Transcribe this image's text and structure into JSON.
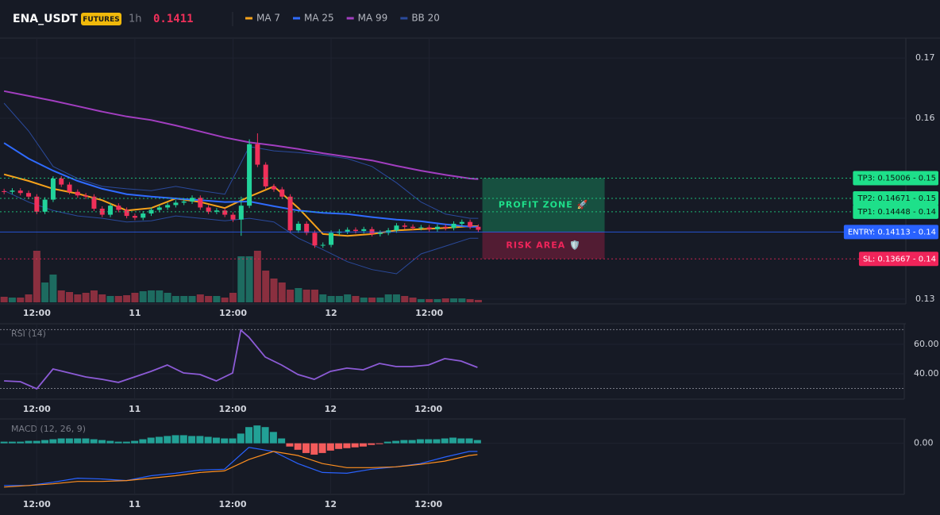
{
  "header": {
    "symbol": "ENA_USDT",
    "badge": "FUTURES",
    "interval": "1h",
    "price": 0.1411
  },
  "chart_data": [
    {
      "type": "candlestick",
      "xlim": [
        -0.5,
        110.3
      ],
      "xticks": [
        {
          "value": 4,
          "label": "12:00"
        },
        {
          "value": 16,
          "label": "11"
        },
        {
          "value": 28,
          "label": "12:00"
        },
        {
          "value": 40,
          "label": "12"
        },
        {
          "value": 52,
          "label": "12:00"
        }
      ],
      "ylim": [
        0.1292,
        0.1733
      ],
      "yticks": [
        0.13,
        0.16,
        0.17
      ],
      "grid": true,
      "up_color": "#22d39b",
      "down_color": "#f0305a",
      "volume_up_color": "#1d6b60",
      "volume_down_color": "#8a2f3f",
      "ohlc": [
        [
          0.1479,
          0.1483,
          0.1474,
          0.1478
        ],
        [
          0.1478,
          0.1484,
          0.1474,
          0.148
        ],
        [
          0.148,
          0.1484,
          0.1472,
          0.1476
        ],
        [
          0.1476,
          0.148,
          0.1466,
          0.147
        ],
        [
          0.147,
          0.1474,
          0.1441,
          0.1445
        ],
        [
          0.1445,
          0.1469,
          0.1441,
          0.1465
        ],
        [
          0.1465,
          0.1504,
          0.1461,
          0.15
        ],
        [
          0.15,
          0.1504,
          0.1486,
          0.149
        ],
        [
          0.149,
          0.1494,
          0.1474,
          0.1478
        ],
        [
          0.1478,
          0.1482,
          0.1468,
          0.1472
        ],
        [
          0.1472,
          0.1476,
          0.1466,
          0.147
        ],
        [
          0.147,
          0.1474,
          0.1446,
          0.145
        ],
        [
          0.145,
          0.1454,
          0.1436,
          0.144
        ],
        [
          0.144,
          0.1459,
          0.1436,
          0.1455
        ],
        [
          0.1455,
          0.1459,
          0.1444,
          0.1448
        ],
        [
          0.1448,
          0.1452,
          0.1434,
          0.1438
        ],
        [
          0.1438,
          0.1442,
          0.1431,
          0.1435
        ],
        [
          0.1435,
          0.1446,
          0.1431,
          0.1442
        ],
        [
          0.1442,
          0.1452,
          0.1438,
          0.1448
        ],
        [
          0.1448,
          0.1456,
          0.1444,
          0.1452
        ],
        [
          0.1452,
          0.146,
          0.1448,
          0.1456
        ],
        [
          0.1456,
          0.1464,
          0.1452,
          0.146
        ],
        [
          0.146,
          0.1466,
          0.1456,
          0.1462
        ],
        [
          0.1462,
          0.1472,
          0.1458,
          0.1468
        ],
        [
          0.1468,
          0.1472,
          0.1448,
          0.1452
        ],
        [
          0.1452,
          0.1456,
          0.1441,
          0.1445
        ],
        [
          0.1445,
          0.1451,
          0.1441,
          0.1447
        ],
        [
          0.1447,
          0.1451,
          0.1436,
          0.144
        ],
        [
          0.144,
          0.1444,
          0.1428,
          0.1432
        ],
        [
          0.1432,
          0.147,
          0.1405,
          0.1455
        ],
        [
          0.1455,
          0.1565,
          0.1451,
          0.1557
        ],
        [
          0.1557,
          0.1575,
          0.1519,
          0.1523
        ],
        [
          0.1523,
          0.1527,
          0.1483,
          0.1487
        ],
        [
          0.1487,
          0.1491,
          0.1478,
          0.1482
        ],
        [
          0.1482,
          0.1486,
          0.1466,
          0.147
        ],
        [
          0.147,
          0.1474,
          0.141,
          0.1414
        ],
        [
          0.1414,
          0.1429,
          0.141,
          0.1425
        ],
        [
          0.1425,
          0.1429,
          0.1406,
          0.141
        ],
        [
          0.141,
          0.1414,
          0.1385,
          0.1389
        ],
        [
          0.1389,
          0.1394,
          0.1385,
          0.139
        ],
        [
          0.139,
          0.1414,
          0.1386,
          0.141
        ],
        [
          0.141,
          0.1416,
          0.1406,
          0.1412
        ],
        [
          0.1412,
          0.1419,
          0.1408,
          0.1415
        ],
        [
          0.1415,
          0.1419,
          0.1409,
          0.1413
        ],
        [
          0.1413,
          0.142,
          0.1409,
          0.1416
        ],
        [
          0.1416,
          0.142,
          0.1404,
          0.1408
        ],
        [
          0.1408,
          0.1414,
          0.1404,
          0.141
        ],
        [
          0.141,
          0.1418,
          0.1406,
          0.1414
        ],
        [
          0.1414,
          0.1426,
          0.141,
          0.1422
        ],
        [
          0.1422,
          0.1426,
          0.1416,
          0.142
        ],
        [
          0.142,
          0.1424,
          0.1414,
          0.1418
        ],
        [
          0.1418,
          0.1423,
          0.1414,
          0.1419
        ],
        [
          0.1419,
          0.1423,
          0.1412,
          0.1416
        ],
        [
          0.1416,
          0.1424,
          0.1412,
          0.142
        ],
        [
          0.142,
          0.1424,
          0.1414,
          0.1418
        ],
        [
          0.1418,
          0.1429,
          0.1414,
          0.1425
        ],
        [
          0.1425,
          0.1432,
          0.1421,
          0.1428
        ],
        [
          0.1428,
          0.1432,
          0.1416,
          0.142
        ],
        [
          0.142,
          0.1424,
          0.1411,
          0.1415
        ]
      ],
      "volume": [
        7,
        6,
        6,
        10,
        65,
        25,
        35,
        15,
        13,
        10,
        12,
        15,
        10,
        8,
        8,
        9,
        12,
        14,
        15,
        15,
        12,
        8,
        8,
        8,
        10,
        8,
        8,
        6,
        12,
        58,
        58,
        65,
        40,
        30,
        25,
        16,
        18,
        16,
        16,
        10,
        8,
        8,
        10,
        8,
        6,
        6,
        6,
        10,
        10,
        8,
        6,
        4,
        4,
        4,
        5,
        5,
        5,
        4,
        3
      ],
      "volume_lim": [
        0,
        100
      ],
      "lines": {
        "x": [
          0,
          3,
          6,
          9,
          12,
          15,
          18,
          21,
          24,
          27,
          30,
          33,
          36,
          39,
          42,
          45,
          48,
          51,
          54,
          57,
          58
        ],
        "series": [
          {
            "name": "MA 7",
            "color": "#f7a21b",
            "values": [
              0.1507,
              0.1496,
              0.1483,
              0.1475,
              0.1464,
              0.1447,
              0.1451,
              0.1467,
              0.1461,
              0.1451,
              0.147,
              0.1487,
              0.1451,
              0.1408,
              0.1405,
              0.1408,
              0.1414,
              0.1416,
              0.1418,
              0.1421,
              0.1421
            ]
          },
          {
            "name": "MA 25",
            "color": "#2f6bff",
            "values": [
              0.1559,
              0.1533,
              0.1513,
              0.1496,
              0.1483,
              0.1474,
              0.147,
              0.1467,
              0.1464,
              0.1461,
              0.1462,
              0.1454,
              0.1447,
              0.1443,
              0.1441,
              0.1436,
              0.1432,
              0.1429,
              0.1424,
              0.142,
              0.142
            ]
          },
          {
            "name": "MA 99",
            "color": "#a23ec0",
            "values": [
              0.1645,
              0.1637,
              0.1629,
              0.162,
              0.1611,
              0.1603,
              0.1597,
              0.1588,
              0.1578,
              0.1568,
              0.156,
              0.1555,
              0.1549,
              0.1542,
              0.1536,
              0.153,
              0.1521,
              0.1513,
              0.1506,
              0.15,
              0.1499
            ]
          },
          {
            "name": "BB 20",
            "color": "#2a4a9c",
            "values": [
              0.1625,
              0.1579,
              0.152,
              0.15,
              0.1487,
              0.1483,
              0.148,
              0.1487,
              0.148,
              0.1474,
              0.1553,
              0.1546,
              0.1543,
              0.1539,
              0.1533,
              0.152,
              0.1493,
              0.1461,
              0.1441,
              0.1434,
              0.1434
            ],
            "lower": [
              0.148,
              0.1461,
              0.1447,
              0.1438,
              0.1434,
              0.1428,
              0.143,
              0.1438,
              0.1434,
              0.143,
              0.1434,
              0.1428,
              0.1401,
              0.1382,
              0.1362,
              0.1349,
              0.1342,
              0.1375,
              0.1388,
              0.1401,
              0.1401
            ]
          }
        ]
      },
      "levels": [
        {
          "label": "TP3: 0.15006 - 0.15",
          "value": 0.15006,
          "color": "#1ee08a"
        },
        {
          "label": "TP2: 0.14671 - 0.15",
          "value": 0.14671,
          "color": "#1ee08a"
        },
        {
          "label": "TP1: 0.14448 - 0.14",
          "value": 0.14448,
          "color": "#1ee08a"
        },
        {
          "label": "ENTRY: 0.14113 - 0.14",
          "value": 0.14113,
          "color": "#2962ff"
        },
        {
          "label": "SL: 0.13667 - 0.14",
          "value": 0.13667,
          "color": "#f0245a"
        }
      ],
      "zones": [
        {
          "label": "PROFIT ZONE 🚀",
          "color": "#1ee08a"
        },
        {
          "label": "RISK AREA 🛡️",
          "color": "#f0245a"
        }
      ]
    },
    {
      "type": "line",
      "title": "RSI (14)",
      "color": "#8c5bd6",
      "x": [
        0,
        2,
        4,
        6,
        8,
        10,
        12,
        14,
        16,
        18,
        20,
        22,
        24,
        26,
        28,
        29,
        30,
        32,
        34,
        36,
        38,
        40,
        42,
        44,
        46,
        48,
        50,
        52,
        54,
        56,
        58
      ],
      "values": [
        35.1,
        34.6,
        29.7,
        43.2,
        40.5,
        37.8,
        36.2,
        34.1,
        37.8,
        41.6,
        45.9,
        40.5,
        39.5,
        35.1,
        40.5,
        69.7,
        64.9,
        51.4,
        45.9,
        39.5,
        36.2,
        41.6,
        43.8,
        42.7,
        47.0,
        44.9,
        44.9,
        45.9,
        50.3,
        48.6,
        44.3
      ],
      "bands": [
        30,
        70
      ],
      "xlim": [
        -0.5,
        110.3
      ],
      "xticks": [
        {
          "value": 4,
          "label": "12:00"
        },
        {
          "value": 16,
          "label": "11"
        },
        {
          "value": 28,
          "label": "12:00"
        },
        {
          "value": 40,
          "label": "12"
        },
        {
          "value": 52,
          "label": "12:00"
        }
      ],
      "ylim": [
        22.7,
        74
      ],
      "yticks": [
        {
          "value": 60,
          "label": "60.00"
        },
        {
          "value": 40,
          "label": "40.00"
        }
      ]
    },
    {
      "type": "macd",
      "title": "MACD (12, 26, 9)",
      "histogram": [
        6e-05,
        6e-05,
        6e-05,
        9e-05,
        9e-05,
        0.00012,
        0.00015,
        0.00018,
        0.00018,
        0.00018,
        0.00018,
        0.00015,
        0.00012,
        9e-05,
        6e-05,
        6e-05,
        9e-05,
        0.00015,
        0.00021,
        0.00024,
        0.00027,
        0.0003,
        0.0003,
        0.00027,
        0.00027,
        0.00024,
        0.00021,
        0.00018,
        0.00018,
        0.00036,
        0.0006,
        0.00066,
        0.0006,
        0.00042,
        0.00018,
        -0.00012,
        -0.00024,
        -0.00036,
        -0.00042,
        -0.00036,
        -0.00027,
        -0.00021,
        -0.00018,
        -0.00015,
        -0.00012,
        -6e-05,
        -3e-05,
        6e-05,
        9e-05,
        0.00012,
        0.00012,
        0.00015,
        0.00015,
        0.00015,
        0.00018,
        0.00021,
        0.00018,
        0.00018,
        0.00012
      ],
      "up_color": "#22a196",
      "down_color": "#f45b5b",
      "x": [
        0,
        3,
        6,
        9,
        12,
        15,
        18,
        21,
        24,
        27,
        30,
        33,
        36,
        39,
        42,
        45,
        48,
        51,
        54,
        57,
        58
      ],
      "series": [
        {
          "color": "#2962ff",
          "values": [
            -0.00156,
            -0.00156,
            -0.00144,
            -0.00129,
            -0.00132,
            -0.00138,
            -0.0012,
            -0.00111,
            -0.00099,
            -0.00096,
            -0.00015,
            -0.0003,
            -0.00075,
            -0.00108,
            -0.00111,
            -0.00096,
            -0.00087,
            -0.00075,
            -0.00051,
            -0.0003,
            -0.0003
          ]
        },
        {
          "color": "#ff8f1f",
          "values": [
            -0.00162,
            -0.00156,
            -0.0015,
            -0.00141,
            -0.00141,
            -0.00138,
            -0.00129,
            -0.0012,
            -0.00108,
            -0.00102,
            -0.0006,
            -0.0003,
            -0.00045,
            -0.00075,
            -0.0009,
            -0.0009,
            -0.00087,
            -0.00078,
            -0.00066,
            -0.00045,
            -0.00042
          ]
        }
      ],
      "xlim": [
        -0.5,
        110.3
      ],
      "xticks": [
        {
          "value": 4,
          "label": "12:00"
        },
        {
          "value": 16,
          "label": "11"
        },
        {
          "value": 28,
          "label": "12:00"
        },
        {
          "value": 40,
          "label": "12"
        },
        {
          "value": 52,
          "label": "12:00"
        }
      ],
      "ylim": [
        -0.00189,
        0.0009
      ],
      "yticks": [
        {
          "value": 0,
          "label": "0.00"
        }
      ]
    }
  ]
}
